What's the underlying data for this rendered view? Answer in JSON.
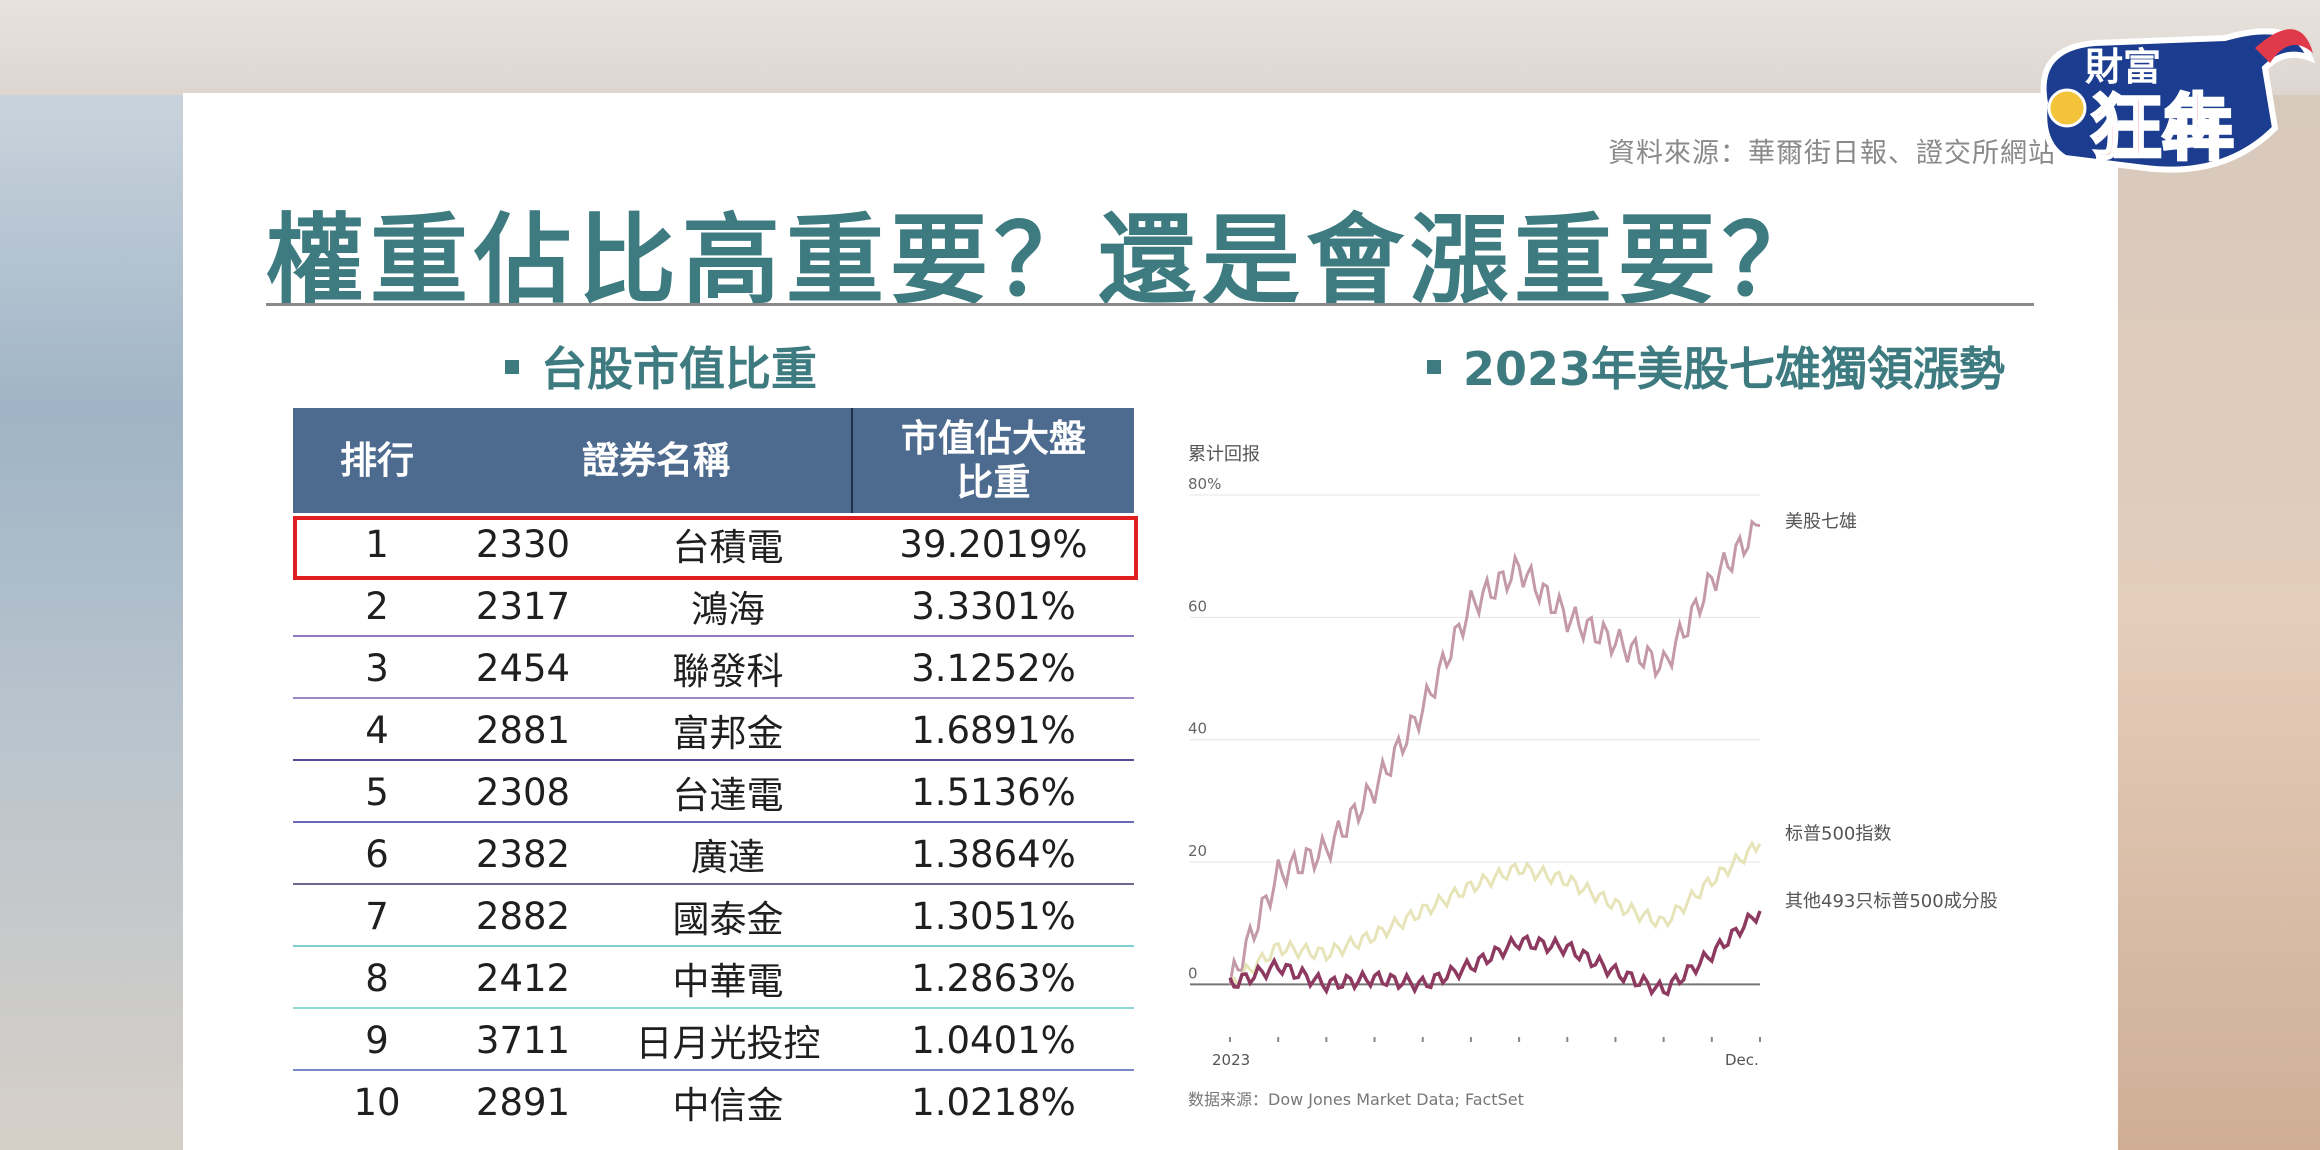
{
  "slide": {
    "source": "資料來源：華爾街日報、證交所網站",
    "title": "權重佔比高重要？還是會漲重要？",
    "left_heading": "台股市值比重",
    "right_heading": "2023年美股七雄獨領漲勢"
  },
  "logo": {
    "text_top": "財富",
    "text_main": "狂犇"
  },
  "table": {
    "headers": {
      "rank": "排行",
      "name": "證券名稱",
      "pct_line1": "市值佔大盤",
      "pct_line2": "比重"
    },
    "rows": [
      {
        "rank": "1",
        "code": "2330",
        "name": "台積電",
        "pct": "39.2019%"
      },
      {
        "rank": "2",
        "code": "2317",
        "name": "鴻海",
        "pct": "3.3301%"
      },
      {
        "rank": "3",
        "code": "2454",
        "name": "聯發科",
        "pct": "3.1252%"
      },
      {
        "rank": "4",
        "code": "2881",
        "name": "富邦金",
        "pct": "1.6891%"
      },
      {
        "rank": "5",
        "code": "2308",
        "name": "台達電",
        "pct": "1.5136%"
      },
      {
        "rank": "6",
        "code": "2382",
        "name": "廣達",
        "pct": "1.3864%"
      },
      {
        "rank": "7",
        "code": "2882",
        "name": "國泰金",
        "pct": "1.3051%"
      },
      {
        "rank": "8",
        "code": "2412",
        "name": "中華電",
        "pct": "1.2863%"
      },
      {
        "rank": "9",
        "code": "3711",
        "name": "日月光投控",
        "pct": "1.0401%"
      },
      {
        "rank": "10",
        "code": "2891",
        "name": "中信金",
        "pct": "1.0218%"
      }
    ],
    "row_line_colors": [
      "#ffffff",
      "#8e7bbf",
      "#9c86c8",
      "#5a4a9a",
      "#6a6ab8",
      "#6a6a8e",
      "#7fcfd0",
      "#8fd8d8",
      "#7a8ac8",
      "#ffffff"
    ]
  },
  "chart_data": {
    "type": "line",
    "title": "",
    "ylabel": "累计回报",
    "ylim": [
      -5,
      80
    ],
    "y_ticks": [
      0,
      20,
      40,
      60,
      80
    ],
    "y_tick_labels": [
      "0",
      "20",
      "40",
      "60",
      "80%"
    ],
    "x_labels": [
      "2023",
      "Dec."
    ],
    "x": [
      "2023-01",
      "2023-02",
      "2023-03",
      "2023-04",
      "2023-05",
      "2023-06",
      "2023-07",
      "2023-08",
      "2023-09",
      "2023-10",
      "2023-11",
      "2023-12"
    ],
    "series": [
      {
        "name": "美股七雄",
        "color": "#c49aa8",
        "values": [
          0,
          18,
          22,
          32,
          45,
          62,
          68,
          60,
          56,
          52,
          66,
          75
        ]
      },
      {
        "name": "标普500指数",
        "color": "#e6e4b8",
        "values": [
          0,
          6,
          5,
          8,
          12,
          16,
          19,
          17,
          13,
          10,
          17,
          23
        ]
      },
      {
        "name": "其他493只标普500成分股",
        "color": "#8e3a60",
        "values": [
          0,
          3,
          0,
          1,
          0,
          3,
          7,
          6,
          2,
          -1,
          5,
          12
        ]
      }
    ],
    "footnote": "数据来源：Dow Jones Market Data; FactSet"
  }
}
